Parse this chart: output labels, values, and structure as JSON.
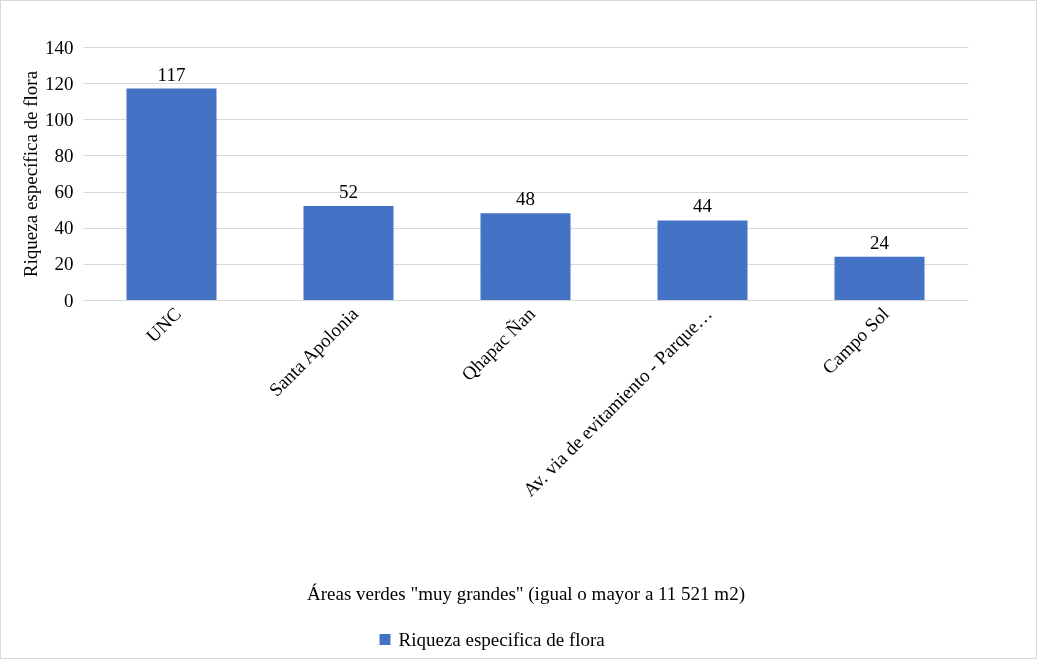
{
  "chart_data": {
    "type": "bar",
    "xlabel": "Áreas verdes \"muy grandes\" (igual o mayor a 11 521 m2)",
    "ylabel": "Riqueza específica de flora",
    "categories": [
      "UNC",
      "Santa Apolonia",
      "Qhapac Ñan",
      "Av. via de evitamiento - Parque…",
      "Campo Sol"
    ],
    "series": [
      {
        "name": "Riqueza especifica de flora",
        "color": "#4472c4",
        "values": [
          117,
          52,
          48,
          44,
          24
        ]
      }
    ],
    "ylim": [
      0,
      140
    ],
    "yticks": [
      0,
      20,
      40,
      60,
      80,
      100,
      120,
      140
    ],
    "grid": "y",
    "legend": "bottom",
    "data_labels": true
  }
}
